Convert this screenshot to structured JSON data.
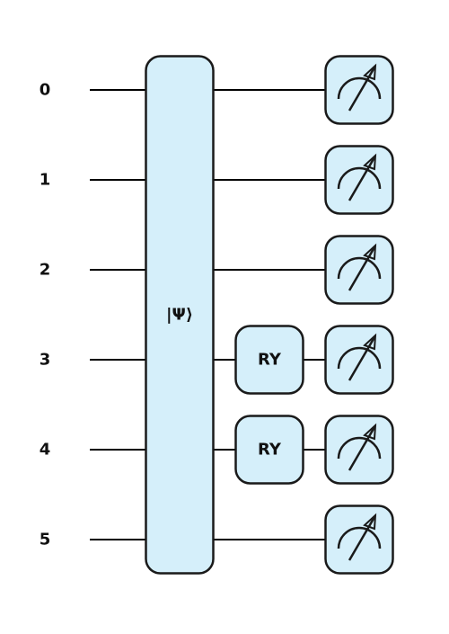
{
  "colors": {
    "gate_fill": "#d5effa",
    "stroke": "#1a1a1a",
    "wire": "#000000",
    "background": "#ffffff"
  },
  "circuit": {
    "qubits": [
      "0",
      "1",
      "2",
      "3",
      "4",
      "5"
    ],
    "state_prep": {
      "label": "|Ψ⟩",
      "qubits": [
        0,
        1,
        2,
        3,
        4,
        5
      ]
    },
    "gates": [
      {
        "label": "RY",
        "qubit": 3
      },
      {
        "label": "RY",
        "qubit": 4
      }
    ],
    "measurements": [
      0,
      1,
      2,
      3,
      4,
      5
    ],
    "measure_icon": "meter-icon"
  }
}
